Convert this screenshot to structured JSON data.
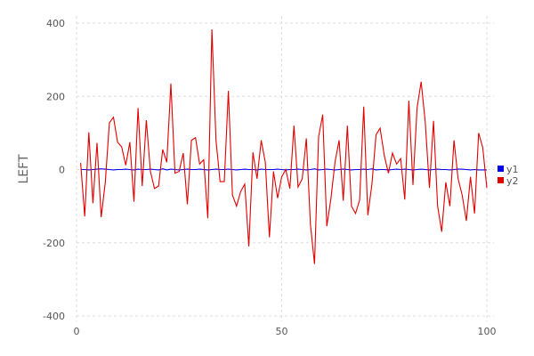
{
  "chart_data": {
    "type": "line",
    "title": "",
    "xlabel": "",
    "ylabel": "LEFT",
    "xlim": [
      0,
      100
    ],
    "ylim": [
      -400,
      400
    ],
    "xticks": [
      0,
      50,
      100
    ],
    "yticks": [
      -400,
      -200,
      0,
      200,
      400
    ],
    "grid": true,
    "legend_position": "right",
    "x": [
      1,
      2,
      3,
      4,
      5,
      6,
      7,
      8,
      9,
      10,
      11,
      12,
      13,
      14,
      15,
      16,
      17,
      18,
      19,
      20,
      21,
      22,
      23,
      24,
      25,
      26,
      27,
      28,
      29,
      30,
      31,
      32,
      33,
      34,
      35,
      36,
      37,
      38,
      39,
      40,
      41,
      42,
      43,
      44,
      45,
      46,
      47,
      48,
      49,
      50,
      51,
      52,
      53,
      54,
      55,
      56,
      57,
      58,
      59,
      60,
      61,
      62,
      63,
      64,
      65,
      66,
      67,
      68,
      69,
      70,
      71,
      72,
      73,
      74,
      75,
      76,
      77,
      78,
      79,
      80,
      81,
      82,
      83,
      84,
      85,
      86,
      87,
      88,
      89,
      90,
      91,
      92,
      93,
      94,
      95,
      96,
      97,
      98,
      99,
      100
    ],
    "series": [
      {
        "name": "y1",
        "color": "#0000ee",
        "values": [
          0,
          0,
          -1,
          0,
          1,
          2,
          1,
          0,
          -1,
          0,
          0,
          1,
          0,
          -1,
          1,
          0,
          0,
          1,
          0,
          -1,
          2,
          -1,
          1,
          0,
          -1,
          0,
          1,
          0,
          0,
          1,
          0,
          -1,
          0,
          1,
          0,
          0,
          1,
          0,
          -1,
          0,
          1,
          0,
          0,
          -1,
          1,
          0,
          0,
          0,
          1,
          0,
          -1,
          0,
          0,
          1,
          0,
          -1,
          0,
          2,
          -1,
          0,
          1,
          0,
          -1,
          0,
          1,
          0,
          -1,
          0,
          0,
          1,
          0,
          2,
          -1,
          0,
          0,
          -1,
          0,
          1,
          0,
          1,
          0,
          -1,
          0,
          1,
          0,
          -1,
          0,
          1,
          0,
          0,
          -1,
          0,
          1,
          1,
          0,
          -1,
          0,
          -1,
          -1,
          -1
        ]
      },
      {
        "name": "y2",
        "color": "#e00000",
        "values": [
          18,
          -128,
          102,
          -92,
          73,
          -130,
          -35,
          128,
          143,
          75,
          62,
          12,
          75,
          -88,
          168,
          -45,
          135,
          -5,
          -52,
          -45,
          55,
          20,
          235,
          -10,
          -5,
          45,
          -95,
          80,
          87,
          15,
          27,
          -133,
          383,
          80,
          -33,
          -33,
          215,
          -70,
          -100,
          -60,
          -40,
          -210,
          47,
          -25,
          80,
          20,
          -185,
          -5,
          -78,
          -20,
          0,
          -52,
          120,
          -48,
          -25,
          85,
          -150,
          -258,
          90,
          150,
          -155,
          -80,
          20,
          80,
          -85,
          120,
          -100,
          -120,
          -83,
          172,
          -125,
          -40,
          95,
          113,
          38,
          -10,
          45,
          15,
          30,
          -82,
          188,
          -42,
          168,
          240,
          130,
          -50,
          133,
          -100,
          -170,
          -35,
          -100,
          80,
          -25,
          -70,
          -140,
          -20,
          -120,
          100,
          60,
          -50
        ]
      }
    ]
  }
}
